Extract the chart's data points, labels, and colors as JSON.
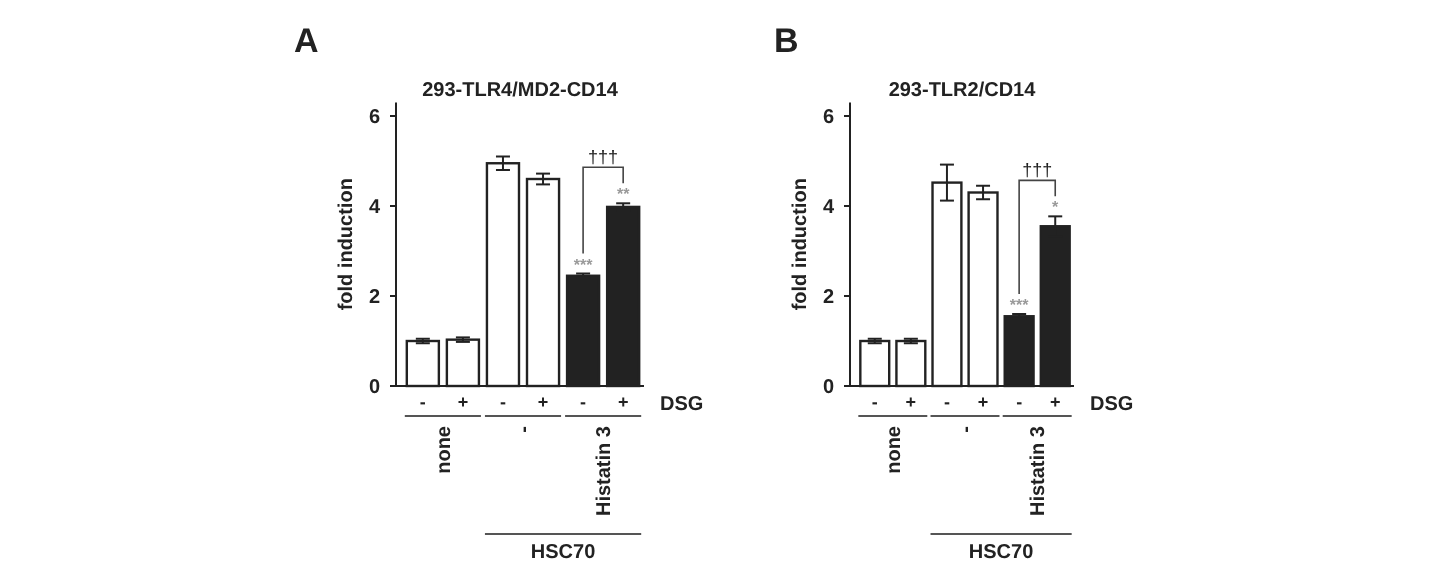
{
  "chart_data": [
    {
      "type": "bar",
      "title": "293-TLR4/MD2-CD14",
      "ylabel": "fold induction",
      "categories": [
        "-",
        "+",
        "-",
        "+",
        "-",
        "+"
      ],
      "values": [
        1.0,
        1.03,
        4.95,
        4.6,
        2.45,
        3.98
      ],
      "errors": [
        0.05,
        0.05,
        0.15,
        0.12,
        0.05,
        0.08
      ],
      "colors": [
        "#ffffff",
        "#ffffff",
        "#ffffff",
        "#ffffff",
        "#222222",
        "#222222"
      ],
      "ylim": [
        0,
        6.3
      ],
      "yticks": [
        0,
        2,
        4,
        6
      ],
      "grid": false,
      "annotations": [
        "A",
        "***",
        "**",
        "†††",
        "DSG",
        "none",
        "-",
        "Histatin 3",
        "HSC70"
      ]
    },
    {
      "type": "bar",
      "title": "293-TLR2/CD14",
      "ylabel": "fold induction",
      "categories": [
        "-",
        "+",
        "-",
        "+",
        "-",
        "+"
      ],
      "values": [
        1.0,
        1.0,
        4.52,
        4.3,
        1.55,
        3.55
      ],
      "errors": [
        0.05,
        0.05,
        0.4,
        0.15,
        0.05,
        0.22
      ],
      "colors": [
        "#ffffff",
        "#ffffff",
        "#ffffff",
        "#ffffff",
        "#222222",
        "#222222"
      ],
      "ylim": [
        0,
        6.3
      ],
      "yticks": [
        0,
        2,
        4,
        6
      ],
      "grid": false,
      "annotations": [
        "B",
        "***",
        "*",
        "†††",
        "DSG",
        "none",
        "-",
        "Histatin 3",
        "HSC70"
      ]
    }
  ]
}
